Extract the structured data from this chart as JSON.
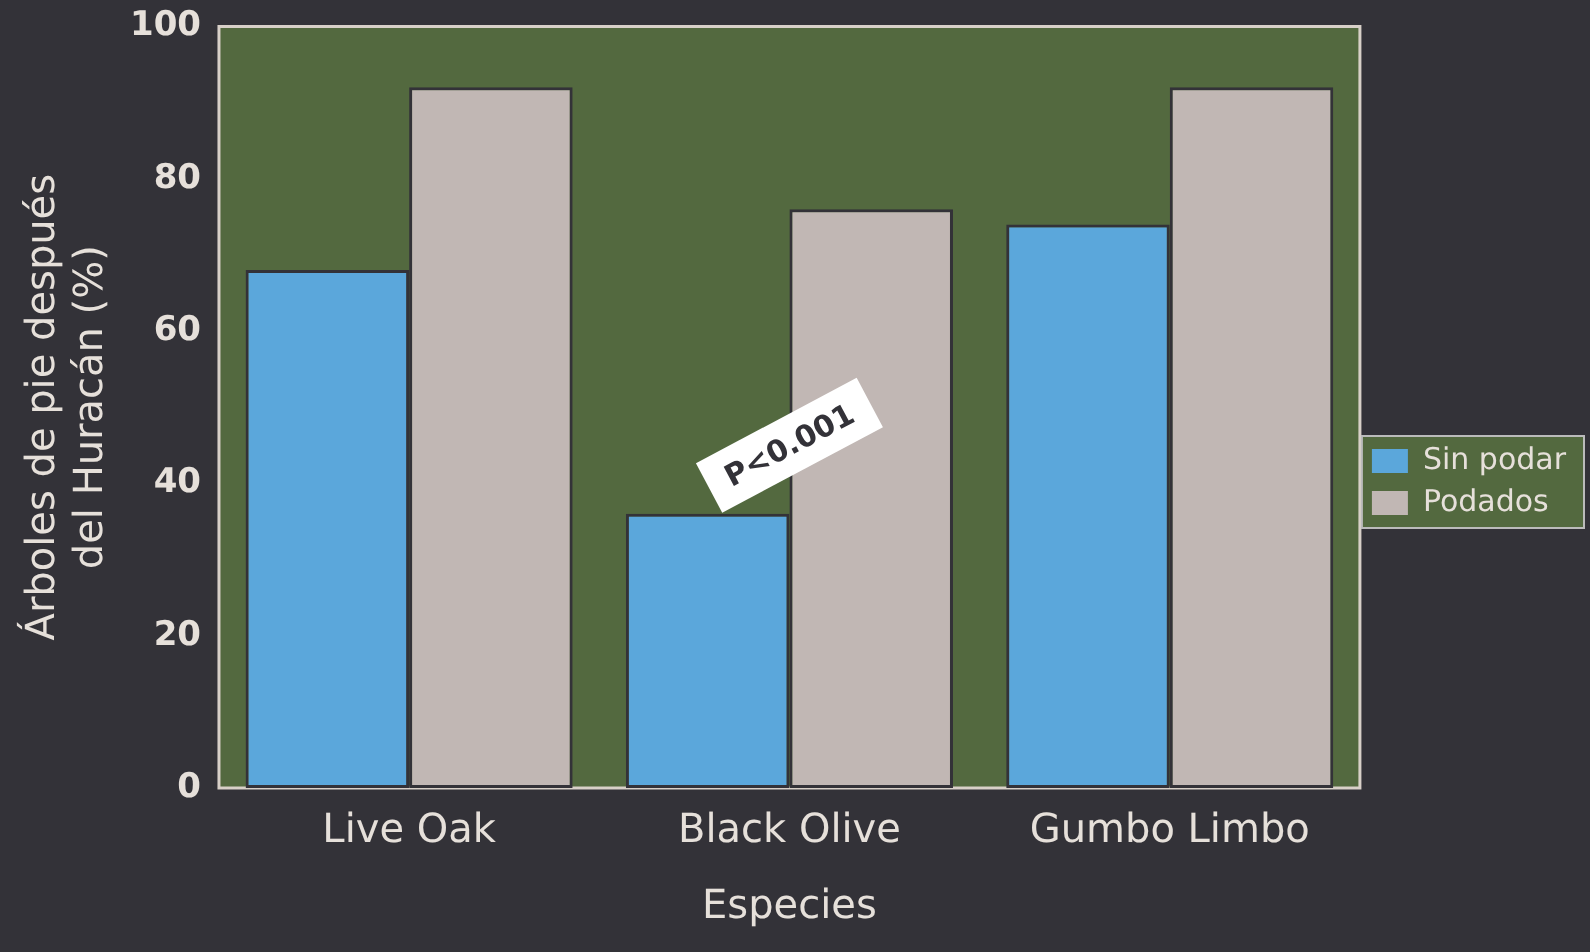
{
  "chart_data": {
    "type": "bar",
    "xlabel": "Especies",
    "ylabel": "Árboles de pie después\ndel Huracán (%)",
    "categories": [
      "Live Oak",
      "Black Olive",
      "Gumbo Limbo"
    ],
    "series": [
      {
        "name": "Sin podar",
        "color": "#5ba7db",
        "values": [
          68,
          36,
          74
        ]
      },
      {
        "name": "Podados",
        "color": "#c1b7b4",
        "values": [
          92,
          76,
          92
        ]
      }
    ],
    "ylim": [
      0,
      100
    ],
    "yticks": [
      0,
      20,
      40,
      60,
      80,
      100
    ],
    "grid": false,
    "legend": "right",
    "annotations": [
      {
        "text": "P<0.001",
        "x": "Black Olive",
        "y": 45
      }
    ]
  }
}
